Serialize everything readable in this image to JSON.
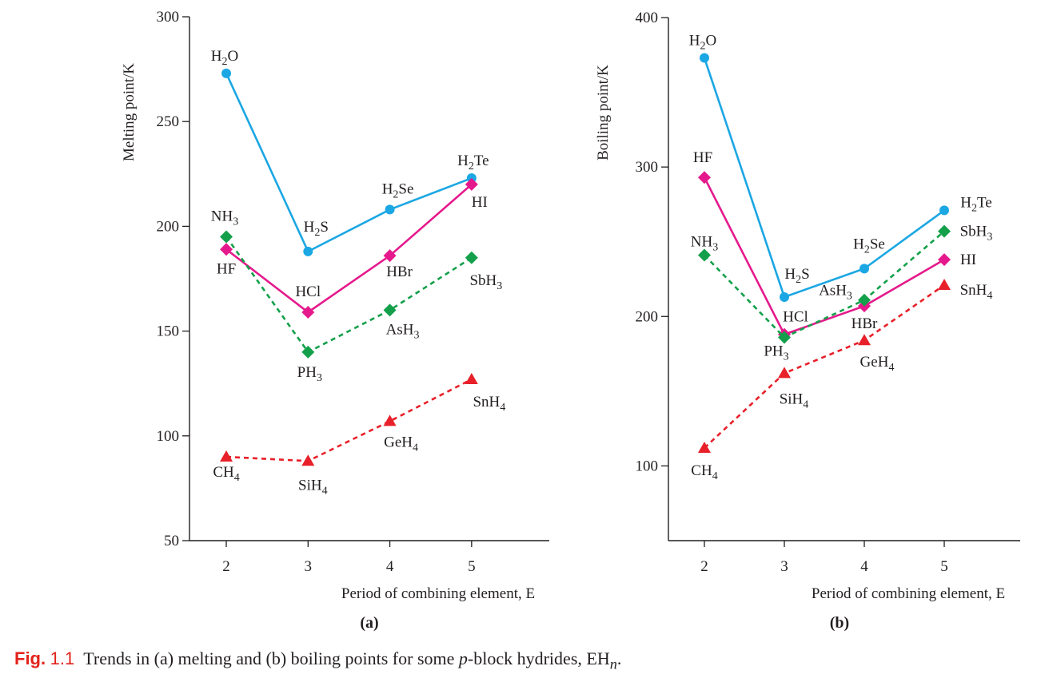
{
  "caption": {
    "fig_word": "Fig.",
    "fig_num": "1.1",
    "text_before": "Trends in (a) melting and (b) boiling points for some ",
    "text_italic": "p",
    "text_after": "-block hydrides, EH",
    "subscript": "n",
    "period": "."
  },
  "colors": {
    "group16": "#1ba7e3",
    "group17": "#e5198c",
    "group15": "#14a04b",
    "group14": "#e8202a",
    "axis": "#231f20"
  },
  "chart_data": [
    {
      "type": "line",
      "panel_label": "(a)",
      "xlabel": "Period of combining element, E",
      "ylabel": "Melting point/K",
      "xlim": [
        1.55,
        5.95
      ],
      "ylim": [
        50,
        300
      ],
      "xticks": [
        2,
        3,
        4,
        5
      ],
      "yticks": [
        50,
        100,
        150,
        200,
        250,
        300
      ],
      "x": [
        2,
        3,
        4,
        5
      ],
      "series": [
        {
          "group": "group16",
          "marker": "circle",
          "dashed": false,
          "values": [
            273,
            188,
            208,
            223
          ],
          "labels": [
            {
              "base": "H",
              "sub": "2",
              "rest": "O",
              "dx": -2,
              "dy": -16
            },
            {
              "base": "H",
              "sub": "2",
              "rest": "S",
              "dx": 10,
              "dy": -25
            },
            {
              "base": "H",
              "sub": "2",
              "rest": "Se",
              "dx": 10,
              "dy": -20
            },
            {
              "base": "H",
              "sub": "2",
              "rest": "Te",
              "dx": 2,
              "dy": -16
            }
          ]
        },
        {
          "group": "group17",
          "marker": "diamond",
          "dashed": false,
          "values": [
            189,
            159,
            186,
            220
          ],
          "labels": [
            {
              "base": "HF",
              "sub": "",
              "rest": "",
              "dx": 0,
              "dy": 30
            },
            {
              "base": "HCl",
              "sub": "",
              "rest": "",
              "dx": 0,
              "dy": -20
            },
            {
              "base": "HBr",
              "sub": "",
              "rest": "",
              "dx": 12,
              "dy": 26
            },
            {
              "base": "HI",
              "sub": "",
              "rest": "",
              "dx": 10,
              "dy": 28
            }
          ]
        },
        {
          "group": "group15",
          "marker": "diamond",
          "dashed": true,
          "values": [
            195,
            140,
            160,
            185
          ],
          "labels": [
            {
              "base": "NH",
              "sub": "3",
              "rest": "",
              "dx": -2,
              "dy": -20
            },
            {
              "base": "PH",
              "sub": "3",
              "rest": "",
              "dx": 2,
              "dy": 31
            },
            {
              "base": "AsH",
              "sub": "3",
              "rest": "",
              "dx": 16,
              "dy": 30
            },
            {
              "base": "SbH",
              "sub": "3",
              "rest": "",
              "dx": 18,
              "dy": 34
            }
          ]
        },
        {
          "group": "group14",
          "marker": "triangle",
          "dashed": true,
          "values": [
            90,
            88,
            107,
            127
          ],
          "labels": [
            {
              "base": "CH",
              "sub": "4",
              "rest": "",
              "dx": 0,
              "dy": 25
            },
            {
              "base": "SiH",
              "sub": "4",
              "rest": "",
              "dx": 6,
              "dy": 36
            },
            {
              "base": "GeH",
              "sub": "4",
              "rest": "",
              "dx": 14,
              "dy": 32
            },
            {
              "base": "SnH",
              "sub": "4",
              "rest": "",
              "dx": 22,
              "dy": 34
            }
          ]
        }
      ]
    },
    {
      "type": "line",
      "panel_label": "(b)",
      "xlabel": "Period of combining element, E",
      "ylabel": "Boiling point/K",
      "xlim": [
        1.55,
        5.95
      ],
      "ylim": [
        50,
        400
      ],
      "xticks": [
        2,
        3,
        4,
        5
      ],
      "yticks": [
        100,
        200,
        300,
        400
      ],
      "x": [
        2,
        3,
        4,
        5
      ],
      "series": [
        {
          "group": "group16",
          "marker": "circle",
          "dashed": false,
          "values": [
            373,
            213,
            232,
            271
          ],
          "labels": [
            {
              "base": "H",
              "sub": "2",
              "rest": "O",
              "dx": -2,
              "dy": -16
            },
            {
              "base": "H",
              "sub": "2",
              "rest": "S",
              "dx": 16,
              "dy": -23
            },
            {
              "base": "H",
              "sub": "2",
              "rest": "Se",
              "dx": 6,
              "dy": -25
            },
            {
              "base": "H",
              "sub": "2",
              "rest": "Te",
              "dx": 40,
              "dy": -4
            }
          ]
        },
        {
          "group": "group17",
          "marker": "diamond",
          "dashed": false,
          "values": [
            293,
            188,
            207,
            238
          ],
          "labels": [
            {
              "base": "HF",
              "sub": "",
              "rest": "",
              "dx": -2,
              "dy": -19
            },
            {
              "base": "HCl",
              "sub": "",
              "rest": "",
              "dx": 14,
              "dy": -16
            },
            {
              "base": "HBr",
              "sub": "",
              "rest": "",
              "dx": 0,
              "dy": 28
            },
            {
              "base": "HI",
              "sub": "",
              "rest": "",
              "dx": 30,
              "dy": 6
            }
          ]
        },
        {
          "group": "group15",
          "marker": "diamond",
          "dashed": true,
          "values": [
            241,
            186,
            211,
            257
          ],
          "labels": [
            {
              "base": "NH",
              "sub": "3",
              "rest": "",
              "dx": 0,
              "dy": -11
            },
            {
              "base": "PH",
              "sub": "3",
              "rest": "",
              "dx": -10,
              "dy": 23
            },
            {
              "base": "AsH",
              "sub": "3",
              "rest": "",
              "dx": -36,
              "dy": -6
            },
            {
              "base": "SbH",
              "sub": "3",
              "rest": "",
              "dx": 40,
              "dy": 6
            }
          ]
        },
        {
          "group": "group14",
          "marker": "triangle",
          "dashed": true,
          "values": [
            112,
            162,
            184,
            221
          ],
          "labels": [
            {
              "base": "CH",
              "sub": "4",
              "rest": "",
              "dx": 0,
              "dy": 34
            },
            {
              "base": "SiH",
              "sub": "4",
              "rest": "",
              "dx": 12,
              "dy": 38
            },
            {
              "base": "GeH",
              "sub": "4",
              "rest": "",
              "dx": 16,
              "dy": 33
            },
            {
              "base": "SnH",
              "sub": "4",
              "rest": "",
              "dx": 40,
              "dy": 12
            }
          ]
        }
      ]
    }
  ]
}
